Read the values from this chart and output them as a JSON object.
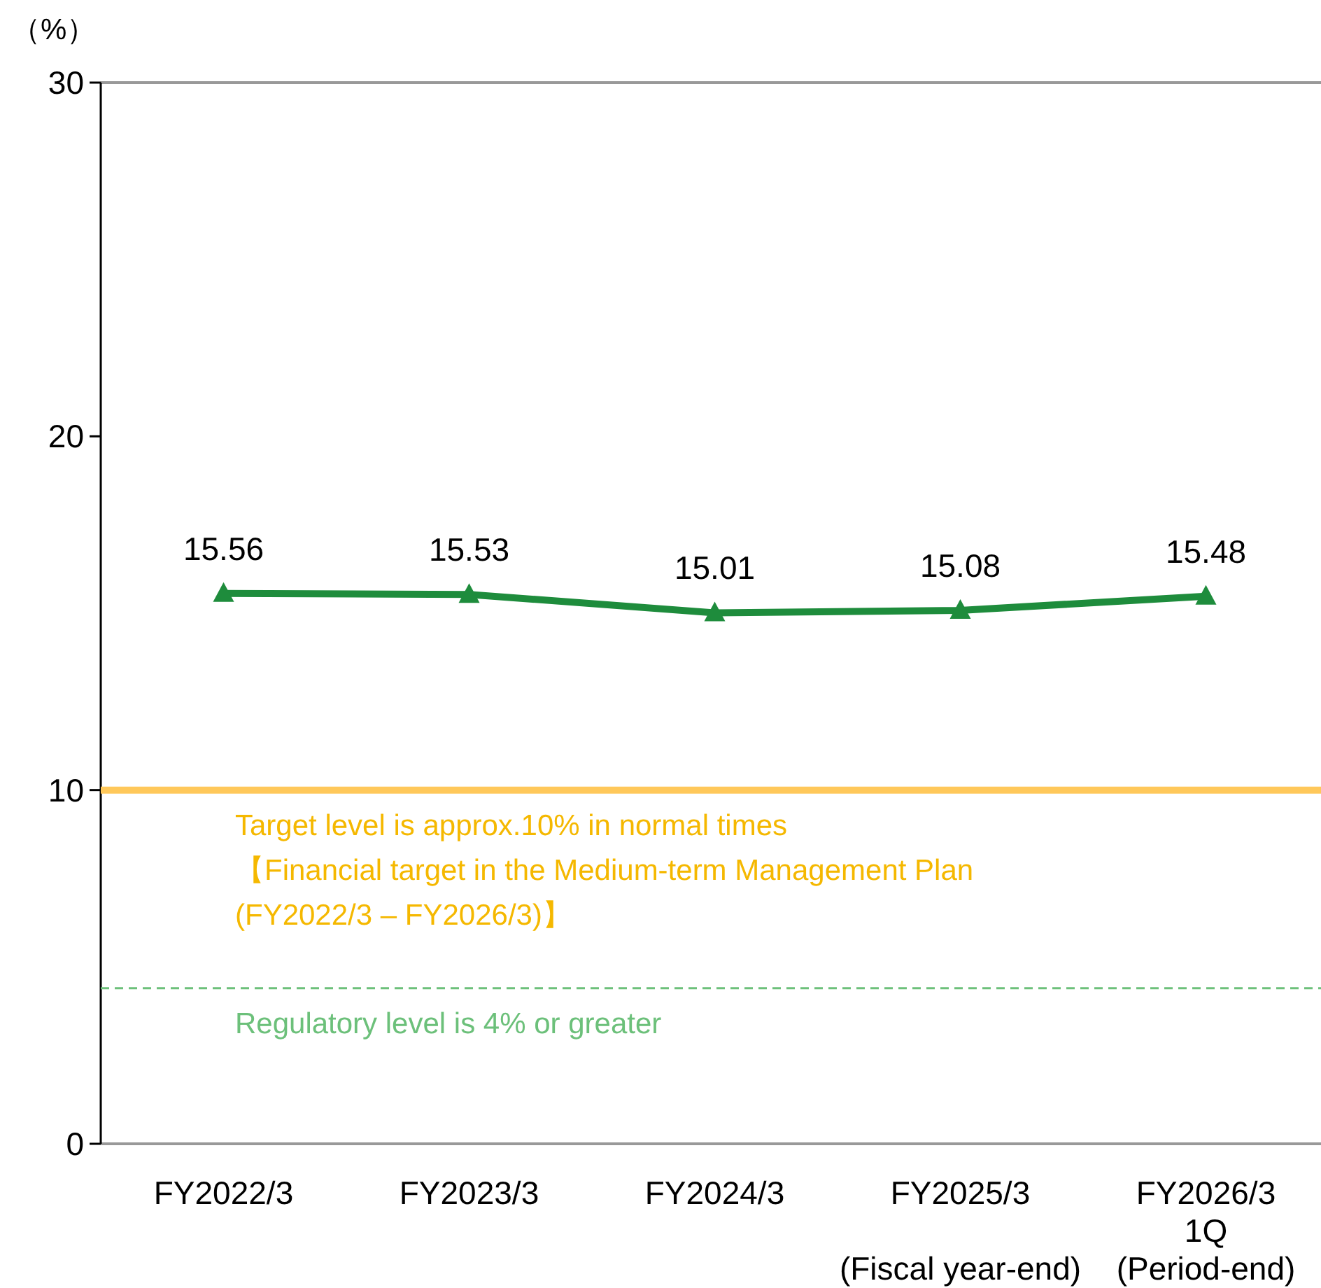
{
  "chart_data": {
    "type": "line",
    "ylabel": "（%）",
    "categories": [
      "FY2022/3",
      "FY2023/3",
      "FY2024/3",
      "FY2025/3\n\n(Fiscal year-end)",
      "FY2026/3\n1Q\n(Period-end)"
    ],
    "series": [
      {
        "color": "#1e8c3c",
        "values": [
          15.56,
          15.53,
          15.01,
          15.08,
          15.48
        ]
      }
    ],
    "marker": "triangle",
    "line_style": "solid",
    "data_labels": true,
    "ylim": [
      0,
      30
    ],
    "yticks": [
      0,
      10,
      20,
      30
    ],
    "ref_lines": [
      {
        "axis": "y",
        "value": 10,
        "label": "Target level is approx.10% in normal times\n【Financial target in the Medium-term Management Plan\n(FY2022/3 – FY2026/3)】",
        "color": "#ffc85a",
        "line_style": "solid"
      },
      {
        "axis": "y",
        "value": 4.4,
        "label": "Regulatory level is 4% or greater",
        "color": "#6cc07a",
        "line_style": "dashed"
      }
    ]
  }
}
